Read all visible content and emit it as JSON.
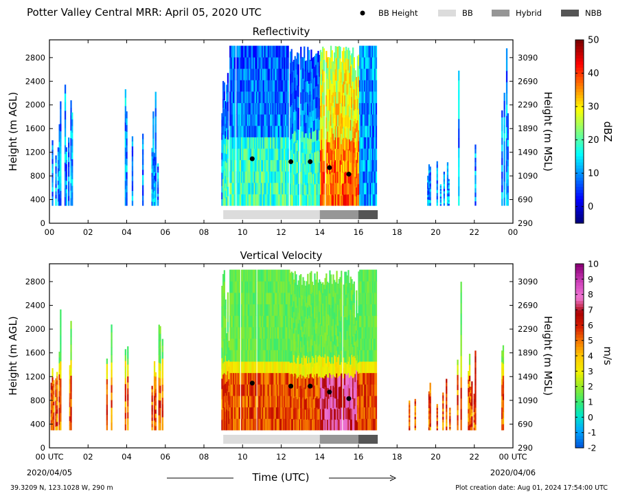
{
  "title": "Potter Valley Central MRR:  April 05, 2020 UTC",
  "legend": [
    {
      "label": "BB Height",
      "kind": "dot",
      "color": "#000000"
    },
    {
      "label": "BB",
      "kind": "patch",
      "color": "#dcdcdc"
    },
    {
      "label": "Hybrid",
      "kind": "patch",
      "color": "#969696"
    },
    {
      "label": "NBB",
      "kind": "patch",
      "color": "#555555"
    }
  ],
  "footer": {
    "location": "39.3209 N, 123.1028 W, 290 m",
    "created": "Plot creation date: Aug 01, 2024 17:54:00 UTC"
  },
  "chart_data": [
    {
      "type": "heatmap",
      "title": "Reflectivity",
      "ylabel": "Height (m AGL)",
      "ylabel_right": "Height (m MSL)",
      "xlim": [
        0,
        24
      ],
      "ylim": [
        0,
        3100
      ],
      "xticks": [
        "00",
        "02",
        "04",
        "06",
        "08",
        "10",
        "12",
        "14",
        "16",
        "18",
        "20",
        "22",
        "00"
      ],
      "yticks": [
        0,
        400,
        800,
        1200,
        1600,
        2000,
        2400,
        2800
      ],
      "yticks_right": [
        "290",
        "690",
        "1090",
        "1490",
        "1890",
        "2290",
        "2690",
        "3090"
      ],
      "colorbar": {
        "label": "dBZ",
        "min": -5,
        "max": 50,
        "ticks": [
          "0",
          "10",
          "20",
          "30",
          "40",
          "50"
        ],
        "colormap": "jet"
      },
      "bb_height": {
        "x": [
          10.5,
          12.5,
          13.5,
          14.5,
          15.5
        ],
        "y": [
          1090,
          1040,
          1040,
          940,
          830
        ]
      },
      "bb_bar": [
        {
          "type": "BB",
          "start": 9.0,
          "end": 14.0
        },
        {
          "type": "Hybrid",
          "start": 14.0,
          "end": 16.0
        },
        {
          "type": "NBB",
          "start": 16.0,
          "end": 17.0
        }
      ]
    },
    {
      "type": "heatmap",
      "title": "Vertical Velocity",
      "ylabel": "Height (m AGL)",
      "ylabel_right": "Height (m MSL)",
      "xlabel": "Time (UTC)",
      "xlim": [
        0,
        24
      ],
      "ylim": [
        0,
        3100
      ],
      "xticks": [
        "00 UTC",
        "02",
        "04",
        "06",
        "08",
        "10",
        "12",
        "14",
        "16",
        "18",
        "20",
        "22",
        "00 UTC"
      ],
      "xdates": [
        "2020/04/05",
        "2020/04/06"
      ],
      "yticks": [
        0,
        400,
        800,
        1200,
        1600,
        2000,
        2400,
        2800
      ],
      "yticks_right": [
        "290",
        "690",
        "1090",
        "1490",
        "1890",
        "2290",
        "2690",
        "3090"
      ],
      "colorbar": {
        "label": "m/s",
        "min": -2,
        "max": 10,
        "ticks": [
          "-2",
          "-1",
          "0",
          "1",
          "2",
          "3",
          "4",
          "5",
          "6",
          "7",
          "8",
          "9",
          "10"
        ],
        "colormap": "velocity"
      },
      "bb_height": {
        "x": [
          10.5,
          12.5,
          13.5,
          14.5,
          15.5
        ],
        "y": [
          1090,
          1040,
          1040,
          940,
          830
        ]
      },
      "bb_bar": [
        {
          "type": "BB",
          "start": 9.0,
          "end": 14.0
        },
        {
          "type": "Hybrid",
          "start": 14.0,
          "end": 16.0
        },
        {
          "type": "NBB",
          "start": 16.0,
          "end": 17.0
        }
      ]
    }
  ]
}
